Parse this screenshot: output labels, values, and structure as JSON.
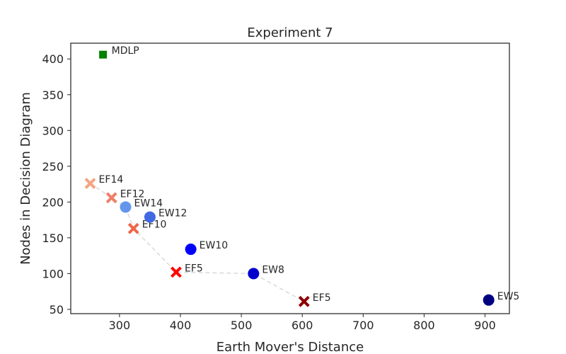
{
  "chart_data": {
    "type": "scatter",
    "title": "Experiment 7",
    "xlabel": "Earth Mover's Distance",
    "ylabel": "Nodes in Decision Diagram",
    "xlim": [
      220,
      940
    ],
    "ylim": [
      44,
      422
    ],
    "x_ticks": [
      300,
      400,
      500,
      600,
      700,
      800,
      900
    ],
    "y_ticks": [
      50,
      100,
      150,
      200,
      250,
      300,
      350,
      400
    ],
    "grid": false,
    "legend": "none",
    "points": [
      {
        "label": "MDLP",
        "x": 273,
        "y": 406,
        "marker": "square",
        "color": "#008000"
      },
      {
        "label": "EF14",
        "x": 252,
        "y": 226,
        "marker": "x",
        "color": "#f4a582"
      },
      {
        "label": "EF12",
        "x": 287,
        "y": 206,
        "marker": "x",
        "color": "#ee7f67"
      },
      {
        "label": "EF10",
        "x": 323,
        "y": 163,
        "marker": "x",
        "color": "#f06548"
      },
      {
        "label": "EF5",
        "x": 393,
        "y": 102,
        "marker": "x",
        "color": "#ff0000"
      },
      {
        "label": "EF5",
        "x": 603,
        "y": 61,
        "marker": "x",
        "color": "#8b0000"
      },
      {
        "label": "EW14",
        "x": 310,
        "y": 193,
        "marker": "circle",
        "color": "#6495ed"
      },
      {
        "label": "EW12",
        "x": 350,
        "y": 179,
        "marker": "circle",
        "color": "#4169e1"
      },
      {
        "label": "EW10",
        "x": 417,
        "y": 134,
        "marker": "circle",
        "color": "#0000ff"
      },
      {
        "label": "EW8",
        "x": 520,
        "y": 100,
        "marker": "circle",
        "color": "#0000cd"
      },
      {
        "label": "EW5",
        "x": 906,
        "y": 63,
        "marker": "circle",
        "color": "#000080"
      }
    ],
    "frontier": [
      {
        "x": 252,
        "y": 226
      },
      {
        "x": 287,
        "y": 206
      },
      {
        "x": 310,
        "y": 193
      },
      {
        "x": 323,
        "y": 163
      },
      {
        "x": 393,
        "y": 102
      },
      {
        "x": 520,
        "y": 100
      },
      {
        "x": 603,
        "y": 61
      }
    ],
    "frontier_color": "#d9d9d9"
  }
}
